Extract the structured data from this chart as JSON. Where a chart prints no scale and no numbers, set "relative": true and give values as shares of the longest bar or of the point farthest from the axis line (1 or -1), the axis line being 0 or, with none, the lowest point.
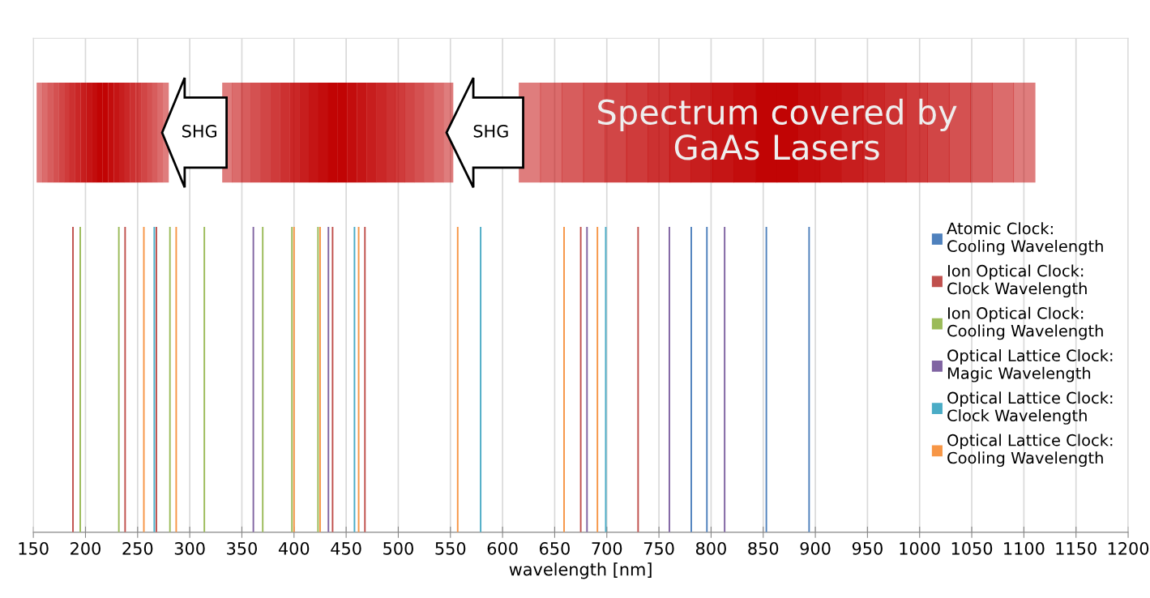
{
  "chart_data": {
    "type": "bar",
    "relative": true,
    "xlabel": "wavelength [nm]",
    "xlim": [
      150,
      1200
    ],
    "xticks": [
      150,
      200,
      250,
      300,
      350,
      400,
      450,
      500,
      550,
      600,
      650,
      700,
      750,
      800,
      850,
      900,
      950,
      1000,
      1050,
      1100,
      1150,
      1200
    ],
    "grid": "x",
    "legend": "right",
    "tick_labels": "x",
    "series": [
      {
        "name": "Atomic Clock:\nCooling Wavelength",
        "color": "#4f81bd",
        "x": [
          781,
          796,
          853,
          894
        ],
        "values": [
          1,
          1,
          1,
          1
        ]
      },
      {
        "name": "Ion Optical Clock:\nClock Wavelength",
        "color": "#c0504d",
        "x": [
          188,
          238,
          268,
          437,
          468,
          675,
          730
        ],
        "values": [
          1,
          1,
          1,
          1,
          1,
          1,
          1
        ]
      },
      {
        "name": "Ion Optical Clock:\nCooling Wavelength",
        "color": "#9bbb59",
        "x": [
          195,
          232,
          281,
          314,
          370,
          398,
          423
        ],
        "values": [
          1,
          1,
          1,
          1,
          1,
          1,
          1
        ]
      },
      {
        "name": "Optical Lattice Clock:\nMagic Wavelength",
        "color": "#8064a2",
        "x": [
          361,
          433,
          681,
          760,
          813
        ],
        "values": [
          1,
          1,
          1,
          1,
          1
        ]
      },
      {
        "name": "Optical Lattice Clock:\nClock Wavelength",
        "color": "#4bacc6",
        "x": [
          266,
          458,
          579,
          699
        ],
        "values": [
          1,
          1,
          1,
          1
        ]
      },
      {
        "name": "Optical Lattice Clock:\nCooling Wavelength",
        "color": "#f79646",
        "x": [
          256,
          287,
          400,
          425,
          462,
          557,
          659,
          691
        ],
        "values": [
          1,
          1,
          1,
          1,
          1,
          1,
          1,
          1
        ]
      }
    ],
    "annotations": [
      "Spectrum covered by\nGaAs Lasers",
      "SHG",
      "SHG"
    ]
  }
}
